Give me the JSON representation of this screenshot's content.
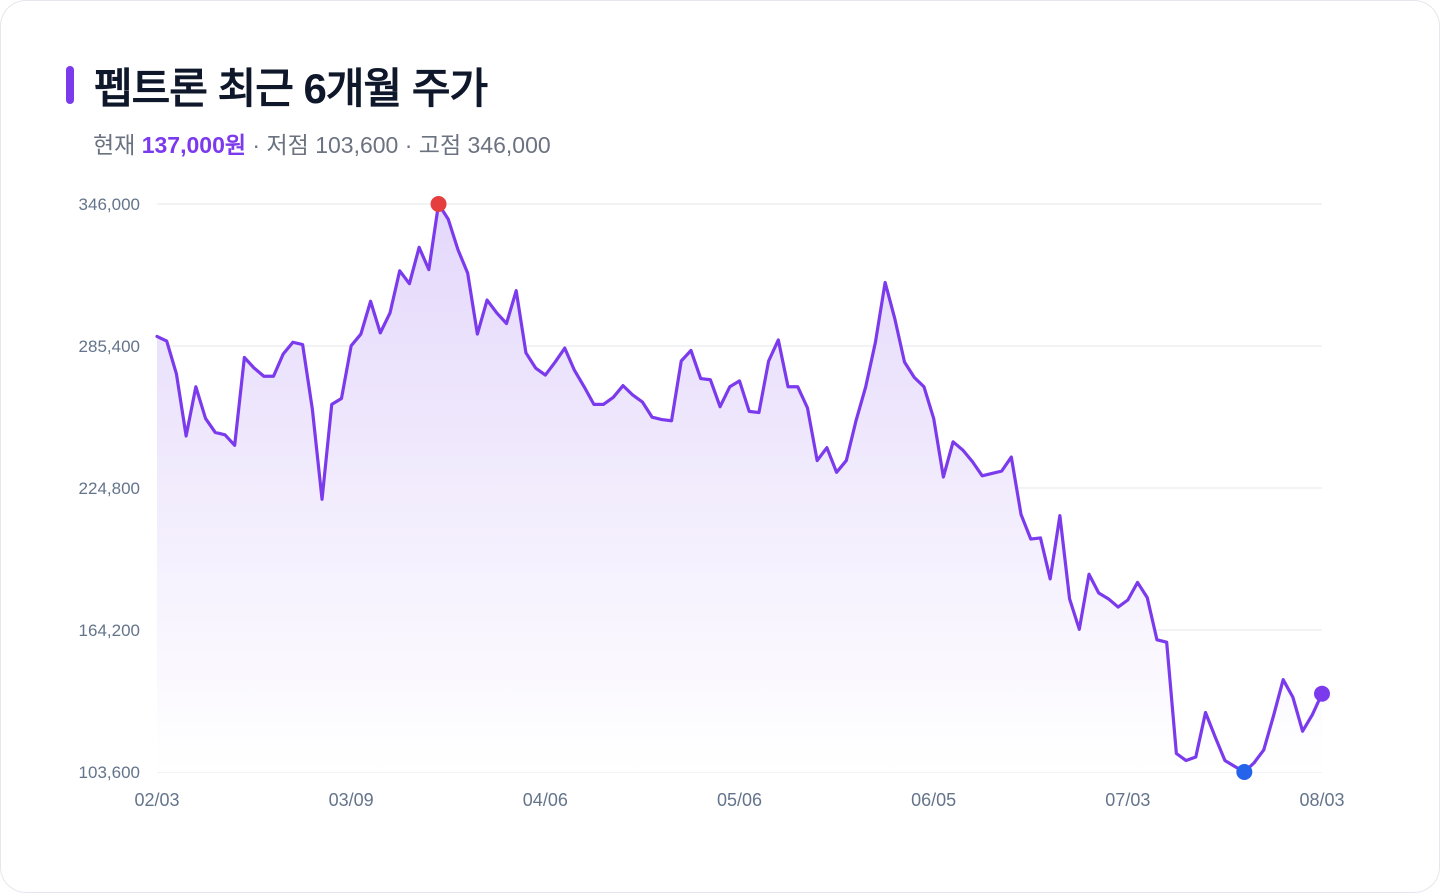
{
  "title": "펩트론 최근 6개월 주가",
  "summary": {
    "current_label": "현재",
    "current_value": "137,000원",
    "sep1": " · ",
    "low_label": "저점",
    "low_value": "103,600",
    "sep2": " · ",
    "high_label": "고점",
    "high_value": "346,000"
  },
  "colors": {
    "line": "#7c3aed",
    "area_top": "#e4d8fb",
    "grid": "#e5e7eb",
    "high_marker": "#e53e3e",
    "low_marker": "#2563eb",
    "current_marker": "#7c3aed"
  },
  "chart_data": {
    "type": "line",
    "title": "펩트론 최근 6개월 주가",
    "xlabel": "",
    "ylabel": "",
    "ylim": [
      103600,
      346000
    ],
    "yticks": [
      "346,000",
      "285,400",
      "224,800",
      "164,200",
      "103,600"
    ],
    "ytick_values": [
      346000,
      285400,
      224800,
      164200,
      103600
    ],
    "xticks": [
      "02/03",
      "03/09",
      "04/06",
      "05/06",
      "06/05",
      "07/03",
      "08/03"
    ],
    "xtick_index": [
      0,
      20,
      40,
      60,
      80,
      100,
      120
    ],
    "grid": true,
    "markers": {
      "high_index": 29,
      "low_index": 112,
      "current_index": 120
    },
    "series": [
      {
        "values": [
          289500,
          287500,
          273500,
          247000,
          268000,
          254500,
          248500,
          247500,
          243000,
          280500,
          276000,
          272500,
          272500,
          282000,
          287000,
          286000,
          258500,
          220000,
          260500,
          263000,
          285500,
          290500,
          304500,
          291000,
          299500,
          317500,
          312000,
          327500,
          318000,
          346000,
          339500,
          326500,
          316500,
          290500,
          305000,
          299500,
          295000,
          309000,
          282500,
          276000,
          273000,
          278500,
          284500,
          275000,
          268000,
          260500,
          260500,
          263500,
          268500,
          264500,
          261500,
          255000,
          254000,
          253500,
          279000,
          283500,
          271500,
          271000,
          259500,
          268000,
          270500,
          257500,
          257000,
          279000,
          288000,
          268000,
          268000,
          259000,
          236500,
          242000,
          231500,
          236500,
          253500,
          268000,
          287000,
          312500,
          297000,
          278500,
          272000,
          268000,
          254500,
          229500,
          244500,
          241000,
          236000,
          230000,
          231000,
          232000,
          238000,
          213500,
          203000,
          203500,
          186000,
          213000,
          177500,
          164500,
          188000,
          180000,
          177500,
          174000,
          177000,
          184500,
          178000,
          160000,
          159000,
          111500,
          108500,
          110000,
          129000,
          118500,
          108500,
          106000,
          103600,
          107500,
          113000,
          127500,
          143000,
          135500,
          121000,
          128000,
          137000
        ]
      }
    ]
  }
}
